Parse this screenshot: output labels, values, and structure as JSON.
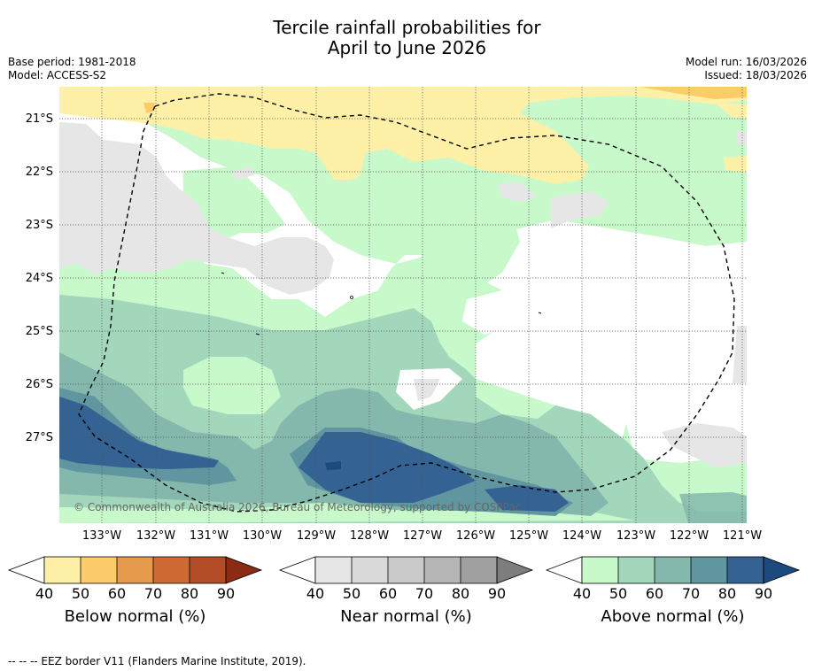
{
  "title": {
    "line1": "Tercile rainfall probabilities for",
    "line2": "April to June 2026"
  },
  "meta": {
    "base_period": "Base period: 1981-2018",
    "model": "Model: ACCESS-S2",
    "model_run": "Model run: 16/03/2026",
    "issued": "Issued: 18/03/2026"
  },
  "map": {
    "latitude_labels": [
      "21°S",
      "22°S",
      "23°S",
      "24°S",
      "25°S",
      "26°S",
      "27°S"
    ],
    "longitude_labels": [
      "133°W",
      "132°W",
      "131°W",
      "130°W",
      "129°W",
      "128°W",
      "127°W",
      "126°W",
      "125°W",
      "124°W",
      "123°W",
      "122°W",
      "121°W"
    ],
    "copyright": "© Commonwealth of Australia 2026, Bureau of Meteorology, supported by COSPPac"
  },
  "colorbars": {
    "ticks": [
      "40",
      "50",
      "60",
      "70",
      "80",
      "90"
    ],
    "below": {
      "label": "Below normal (%)",
      "colors": [
        "#fff0a8",
        "#fdcc6a",
        "#e69a4b",
        "#d06a35",
        "#b34d27",
        "#8c2b14"
      ]
    },
    "near": {
      "label": "Near normal (%)",
      "colors": [
        "#e6e6e6",
        "#d9d9d9",
        "#cacaca",
        "#b5b5b5",
        "#a0a0a0",
        "#7d7d7d"
      ]
    },
    "above": {
      "label": "Above normal (%)",
      "colors": [
        "#c8f9cb",
        "#a3d7bb",
        "#84b8ad",
        "#5f96a0",
        "#336293",
        "#1c4a7e"
      ]
    }
  },
  "footer": "--  --  -- EEZ border V11 (Flanders Marine Institute, 2019)."
}
